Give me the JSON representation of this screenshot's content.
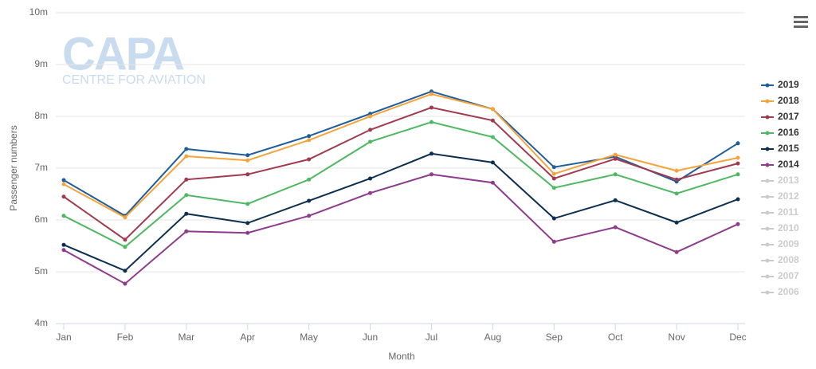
{
  "chart_data": {
    "type": "line",
    "watermark": {
      "title": "CAPA",
      "subtitle": "CENTRE FOR AVIATION"
    },
    "x_label": "Month",
    "y_label": "Passenger numbers",
    "categories": [
      "Jan",
      "Feb",
      "Mar",
      "Apr",
      "May",
      "Jun",
      "Jul",
      "Aug",
      "Sep",
      "Oct",
      "Nov",
      "Dec"
    ],
    "ylim": [
      4,
      10
    ],
    "yticks": [
      {
        "value": 4,
        "label": "4m"
      },
      {
        "value": 5,
        "label": "5m"
      },
      {
        "value": 6,
        "label": "6m"
      },
      {
        "value": 7,
        "label": "7m"
      },
      {
        "value": 8,
        "label": "8m"
      },
      {
        "value": 9,
        "label": "9m"
      },
      {
        "value": 10,
        "label": "10m"
      }
    ],
    "grid": true,
    "legend": "right",
    "series": [
      {
        "name": "2019",
        "color": "#1f5e9c",
        "visible": true,
        "values": [
          6.77,
          6.08,
          7.37,
          7.25,
          7.62,
          8.05,
          8.48,
          8.14,
          7.02,
          7.22,
          6.74,
          7.48
        ]
      },
      {
        "name": "2018",
        "color": "#f4a43a",
        "visible": true,
        "values": [
          6.69,
          6.05,
          7.23,
          7.15,
          7.54,
          8.0,
          8.43,
          8.14,
          6.89,
          7.26,
          6.95,
          7.2
        ]
      },
      {
        "name": "2017",
        "color": "#a23a4f",
        "visible": true,
        "values": [
          6.45,
          5.62,
          6.78,
          6.88,
          7.17,
          7.74,
          8.17,
          7.92,
          6.8,
          7.18,
          6.78,
          7.09
        ]
      },
      {
        "name": "2016",
        "color": "#4fb862",
        "visible": true,
        "values": [
          6.08,
          5.48,
          6.48,
          6.31,
          6.78,
          7.51,
          7.89,
          7.6,
          6.62,
          6.88,
          6.51,
          6.88
        ]
      },
      {
        "name": "2015",
        "color": "#0c2f4f",
        "visible": true,
        "values": [
          5.52,
          5.02,
          6.12,
          5.94,
          6.37,
          6.8,
          7.28,
          7.11,
          6.03,
          6.38,
          5.95,
          6.4
        ]
      },
      {
        "name": "2014",
        "color": "#8e3b8c",
        "visible": true,
        "values": [
          5.42,
          4.77,
          5.78,
          5.75,
          6.08,
          6.52,
          6.88,
          6.72,
          5.58,
          5.86,
          5.38,
          5.92
        ]
      },
      {
        "name": "2013",
        "color": "#cccccc",
        "visible": false,
        "values": [
          null,
          null,
          null,
          null,
          null,
          null,
          null,
          null,
          null,
          null,
          null,
          null
        ]
      },
      {
        "name": "2012",
        "color": "#cccccc",
        "visible": false,
        "values": [
          null,
          null,
          null,
          null,
          null,
          null,
          null,
          null,
          null,
          null,
          null,
          null
        ]
      },
      {
        "name": "2011",
        "color": "#cccccc",
        "visible": false,
        "values": [
          null,
          null,
          null,
          null,
          null,
          null,
          null,
          null,
          null,
          null,
          null,
          null
        ]
      },
      {
        "name": "2010",
        "color": "#cccccc",
        "visible": false,
        "values": [
          null,
          null,
          null,
          null,
          null,
          null,
          null,
          null,
          null,
          null,
          null,
          null
        ]
      },
      {
        "name": "2009",
        "color": "#cccccc",
        "visible": false,
        "values": [
          null,
          null,
          null,
          null,
          null,
          null,
          null,
          null,
          null,
          null,
          null,
          null
        ]
      },
      {
        "name": "2008",
        "color": "#cccccc",
        "visible": false,
        "values": [
          null,
          null,
          null,
          null,
          null,
          null,
          null,
          null,
          null,
          null,
          null,
          null
        ]
      },
      {
        "name": "2007",
        "color": "#cccccc",
        "visible": false,
        "values": [
          null,
          null,
          null,
          null,
          null,
          null,
          null,
          null,
          null,
          null,
          null,
          null
        ]
      },
      {
        "name": "2006",
        "color": "#cccccc",
        "visible": false,
        "values": [
          null,
          null,
          null,
          null,
          null,
          null,
          null,
          null,
          null,
          null,
          null,
          null
        ]
      }
    ]
  }
}
